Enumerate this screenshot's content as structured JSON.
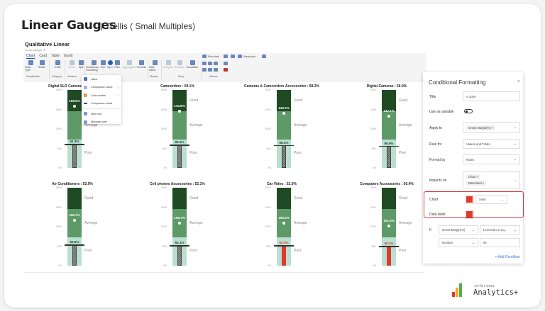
{
  "header": {
    "title": "Linear Gauges",
    "subtitle": "| Trellis ( Small Multiples)"
  },
  "visual": {
    "title": "Qualitative Linear",
    "subtitle": "Gross Margin %"
  },
  "ribbon": {
    "tabs": [
      "Chart",
      "Card",
      "Table",
      "Gantt"
    ],
    "active_tab": "Chart",
    "buttons": {
      "chart_type": "Chart Type",
      "rotate": "Rotate",
      "trellis": "Trellis",
      "series": "Series",
      "split": "Split",
      "conditional_formatting": "Conditional Formatting",
      "sort": "Sort",
      "top_n": "Top n",
      "filter": "Filter",
      "aggregation": "Aggregation",
      "formula": "Formula",
      "data_labels": "Data labels",
      "analytics": "Analytics",
      "deviation": "Deviation",
      "annotation": "Annotation"
    },
    "groups": {
      "visualization": "Visualization",
      "category": "Category",
      "measure": "Measure",
      "display": "Display",
      "story": "Story",
      "actions": "Actions"
    },
    "actions": {
      "pivot_data": "Pivot data",
      "storyboard": "Storyboard",
      "kpi": "KPI"
    }
  },
  "cf_menu": {
    "items": [
      {
        "label": "Value",
        "has_submenu": true,
        "icon": "bar-chart-icon"
      },
      {
        "label": "Comparison value",
        "has_submenu": true,
        "icon": "comparison-icon"
      },
      {
        "label": "Color scales",
        "has_submenu": true,
        "icon": "color-scales-icon"
      },
      {
        "label": "Comparison band",
        "has_submenu": false,
        "icon": "band-icon"
      },
      {
        "label": "New rule",
        "has_submenu": false,
        "icon": "new-rule-icon"
      },
      {
        "label": "Manage rules",
        "has_submenu": false,
        "icon": "manage-rules-icon"
      }
    ]
  },
  "gauges": [
    {
      "title": "Digital SLR Cameras : 61.3%",
      "actual": "61.3%",
      "actual_val": 61.3,
      "comparison": "158.6%",
      "comparison_val": 158.6,
      "flagged": false
    },
    {
      "title": "Camcorders : 59.1%",
      "actual": "59.1%",
      "actual_val": 59.1,
      "comparison": "144.6%",
      "comparison_val": 144.6,
      "flagged": false
    },
    {
      "title": "Cameras & Camcorders Accessories : 58.3%",
      "actual": "58.3%",
      "actual_val": 58.3,
      "comparison": "140.0%",
      "comparison_val": 140.0,
      "flagged": false
    },
    {
      "title": "Digital Cameras : 56.9%",
      "actual": "56.9%",
      "actual_val": 56.9,
      "comparison": "132.1%",
      "comparison_val": 132.1,
      "flagged": false
    },
    {
      "title": "Air Conditioners : 53.9%",
      "actual": "53.9%",
      "actual_val": 53.9,
      "comparison": "116.7%",
      "comparison_val": 116.7,
      "flagged": false
    },
    {
      "title": "Cell phones Accessories : 52.1%",
      "actual": "52.1%",
      "actual_val": 52.1,
      "comparison": "108.7%",
      "comparison_val": 108.7,
      "flagged": false
    },
    {
      "title": "Car Video : 52.0%",
      "actual": "52.0%",
      "actual_val": 52.0,
      "comparison": "108.2%",
      "comparison_val": 108.2,
      "flagged": true
    },
    {
      "title": "Computers Accessories : 50.4%",
      "actual": "50.4%",
      "actual_val": 50.4,
      "comparison": "101.5%",
      "comparison_val": 101.5,
      "flagged": true
    }
  ],
  "gauge_axis": [
    "200%",
    "150%",
    "100%",
    "50%",
    "0%"
  ],
  "gauge_bands": {
    "good": "Good",
    "average": "Average",
    "poor": "Poor"
  },
  "panel": {
    "title": "Conditional Formatting",
    "close": "×",
    "fields": {
      "title_label": "Title",
      "title_value": "<=52%",
      "use_as_variable_label": "Use as variable",
      "apply_to_label": "Apply to",
      "apply_to_chip": "Gross Margin(%)",
      "rule_for_label": "Rule for",
      "rule_for_value": "Values and Totals",
      "format_by_label": "Format by",
      "format_by_value": "Rules",
      "impacts_on_label": "Impacts on",
      "impacts_chip_1": "Chart",
      "impacts_chip_2": "Data label",
      "chart_label": "Chart",
      "chart_style": "Solid",
      "data_label_label": "Data label",
      "if_label": "If",
      "if_measure": "Gross Margin(%)",
      "if_operator": "Less than or eq...",
      "if_type": "Number",
      "if_value": "52",
      "add_condition": "+ Add Condition"
    },
    "colors": {
      "rule_color": "#e0392b",
      "highlight": "#d4383e"
    }
  },
  "brand": {
    "small": "inforiver",
    "big": "Analytics+"
  }
}
